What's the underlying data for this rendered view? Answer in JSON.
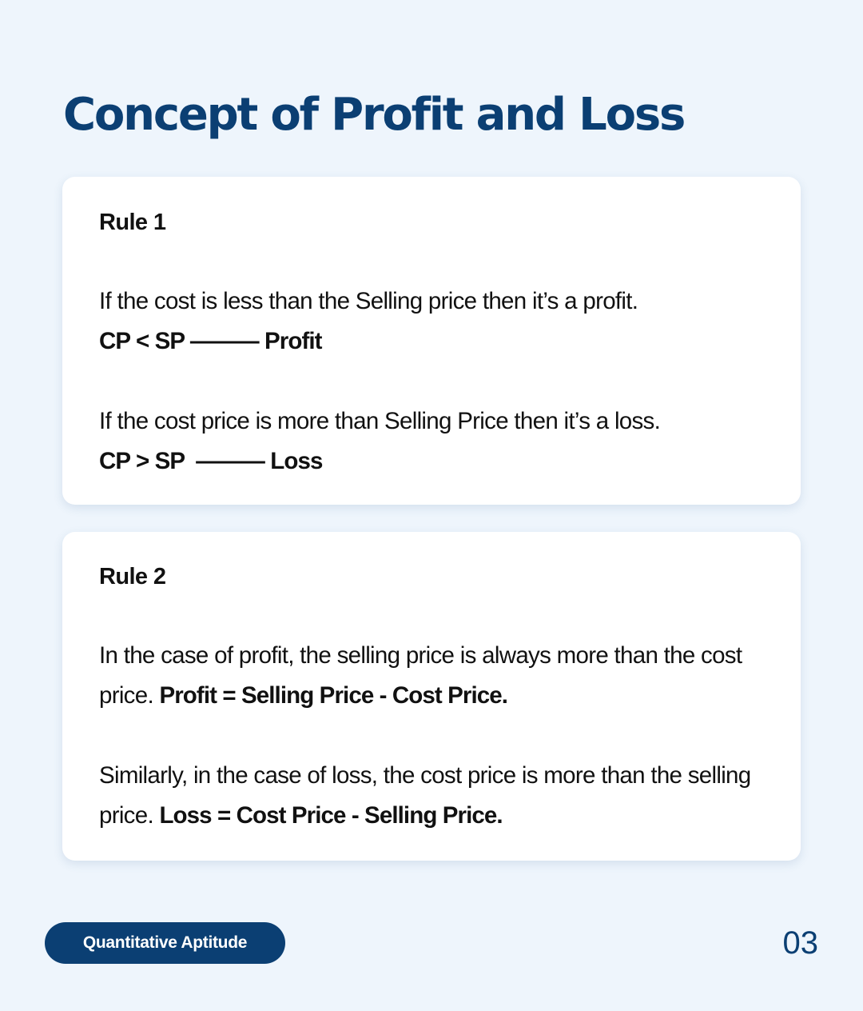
{
  "title": "Concept of Profit and Loss",
  "accent_color": "#0b3f73",
  "background_color": "#eef5fc",
  "rule1": {
    "heading": "Rule 1",
    "text1": "If the cost is less than the Selling price then it’s a profit.",
    "formula1": "CP < SP ——— Profit",
    "text2": "If the cost price is more than Selling Price then it’s a loss.",
    "formula2": "CP > SP  ——— Loss"
  },
  "rule2": {
    "heading": "Rule 2",
    "text1": "In the case of profit, the selling price is always more than the cost price.",
    "formula1": "Profit = Selling Price - Cost Price.",
    "text2": "Similarly, in the case of loss, the cost price is more than the selling price.",
    "formula2": "Loss = Cost Price - Selling Price."
  },
  "footer": {
    "category": "Quantitative Aptitude",
    "page_number": "03"
  }
}
